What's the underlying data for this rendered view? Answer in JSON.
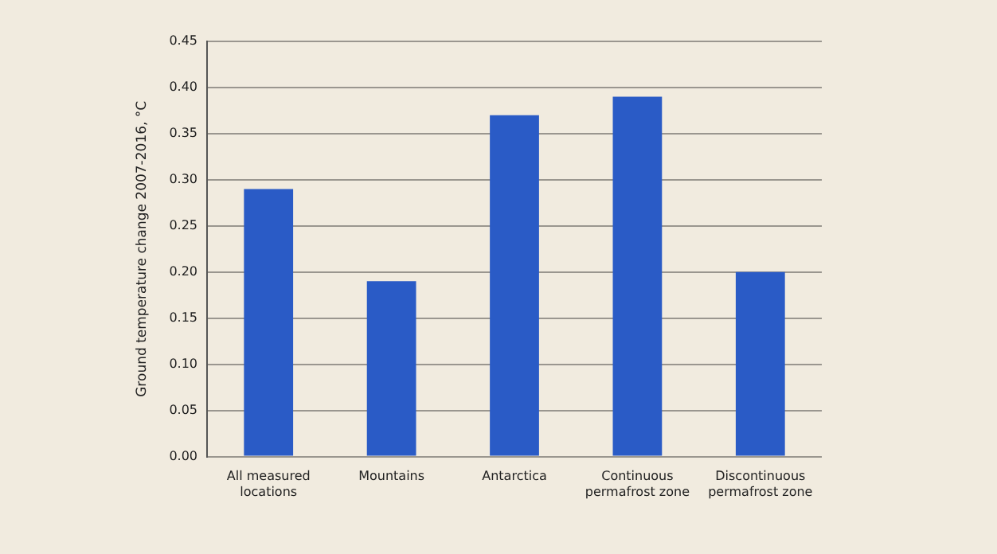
{
  "chart_data": {
    "type": "bar",
    "ylabel": "Ground temperature change 2007-2016, °C",
    "categories": [
      "All measured locations",
      "Mountains",
      "Antarctica",
      "Continuous permafrost zone",
      "Discontinuous permafrost zone"
    ],
    "values": [
      0.29,
      0.19,
      0.37,
      0.39,
      0.2
    ],
    "color": "#2a5bc6",
    "ylim": [
      0,
      0.45
    ],
    "yticks": [
      {
        "value": 0,
        "label": "0.00"
      },
      {
        "value": 0.05,
        "label": "0.05"
      },
      {
        "value": 0.1,
        "label": "0.10"
      },
      {
        "value": 0.15,
        "label": "0.15"
      },
      {
        "value": 0.2,
        "label": "0.20"
      },
      {
        "value": 0.25,
        "label": "0.25"
      },
      {
        "value": 0.3,
        "label": "0.30"
      },
      {
        "value": 0.35,
        "label": "0.35"
      },
      {
        "value": 0.4,
        "label": "0.40"
      },
      {
        "value": 0.45,
        "label": "0.45"
      }
    ],
    "grid": "y"
  }
}
